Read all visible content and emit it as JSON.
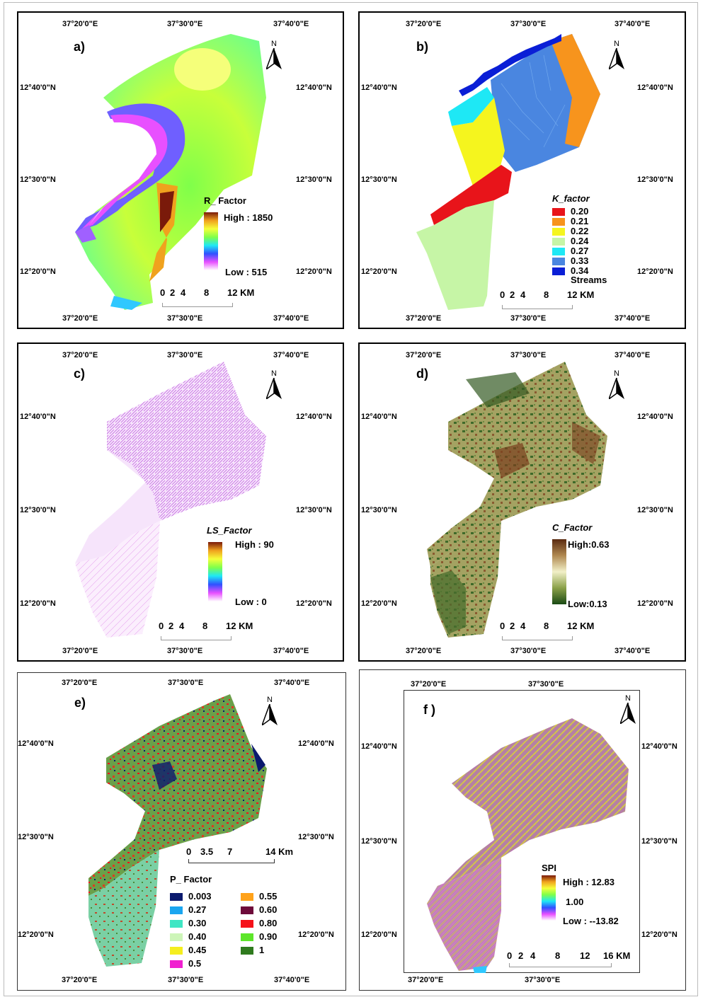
{
  "coords": {
    "lon_2020": "37°20'0\"E",
    "lon_3030": "37°30'0\"E",
    "lon_4040": "37°40'0\"E",
    "lat_40": "12°40'0\"N",
    "lat_30": "12°30'0\"N",
    "lat_20": "12°20'0\"N"
  },
  "north": "N",
  "scale_12": {
    "nums": [
      "0",
      "2",
      "4",
      "8",
      "12 KM"
    ]
  },
  "panels": {
    "a": {
      "label": "a)",
      "title": "R_ Factor",
      "high": "High : 1850",
      "low": "Low : 515"
    },
    "b": {
      "label": "b)",
      "title": "K_factor",
      "classes": [
        "0.20",
        "0.21",
        "0.22",
        "0.24",
        "0.27",
        "0.33",
        "0.34"
      ],
      "streams": "Streams"
    },
    "c": {
      "label": "c)",
      "title": "LS_Factor",
      "high": "High : 90",
      "low": "Low : 0"
    },
    "d": {
      "label": "d)",
      "title": "C_Factor",
      "high": "High:0.63",
      "low": "Low:0.13"
    },
    "e": {
      "label": "e)",
      "title": "P_ Factor",
      "scale": [
        "0",
        "3.5",
        "7",
        "14 Km"
      ],
      "classes_left": [
        "0.003",
        "0.27",
        "0.30",
        "0.40",
        "0.45",
        "0.5"
      ],
      "classes_right": [
        "0.55",
        "0.60",
        "0.80",
        "0.90",
        "1"
      ]
    },
    "f": {
      "label": "f )",
      "title": "SPI",
      "high": "High : 12.83",
      "mid": "1.00",
      "low": "Low : --13.82",
      "scale": [
        "0",
        "2",
        "4",
        "8",
        "12",
        "16 KM"
      ]
    }
  },
  "colors": {
    "k": [
      "#e8141a",
      "#f7941d",
      "#f5f51e",
      "#c6f5a6",
      "#1ee8f5",
      "#4a86e0",
      "#0a1ed6"
    ],
    "p_left": [
      "#0b1a6e",
      "#1aa6f0",
      "#3fe6c4",
      "#cdf5b8",
      "#f5ee1e",
      "#f01fd0"
    ],
    "p_right": [
      "#ffa21a",
      "#6e0a3a",
      "#f5121a",
      "#5de62a",
      "#2f7a1e"
    ]
  }
}
